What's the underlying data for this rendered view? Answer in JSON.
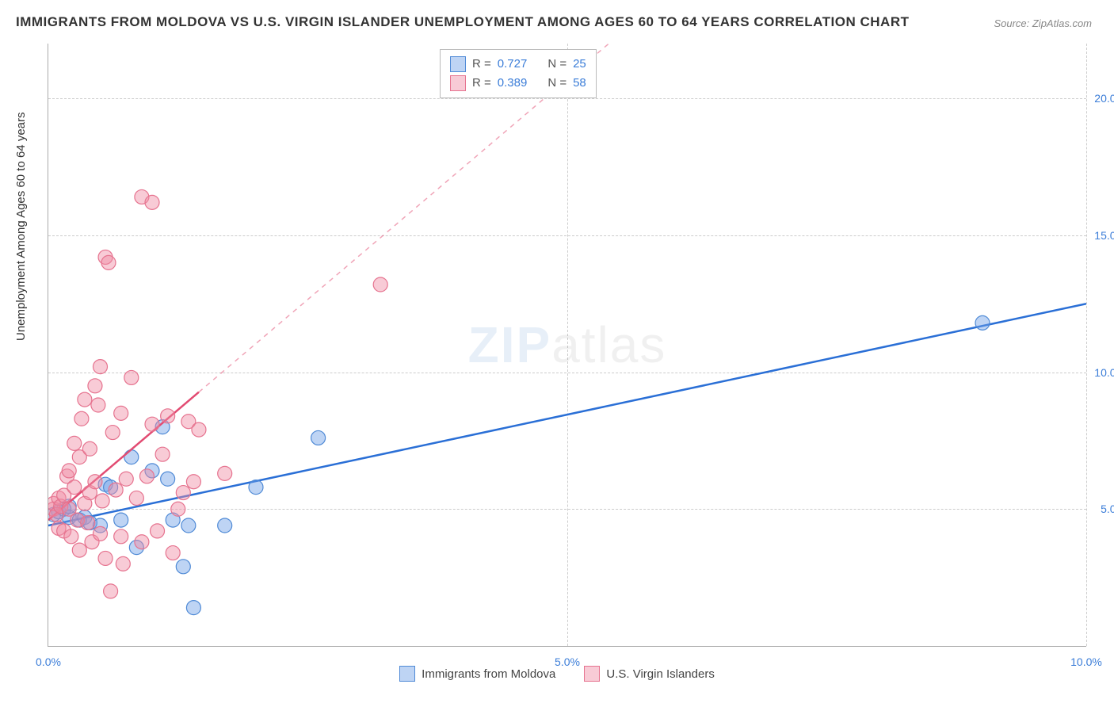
{
  "title": "IMMIGRANTS FROM MOLDOVA VS U.S. VIRGIN ISLANDER UNEMPLOYMENT AMONG AGES 60 TO 64 YEARS CORRELATION CHART",
  "source": "Source: ZipAtlas.com",
  "ylabel": "Unemployment Among Ages 60 to 64 years",
  "watermark_bold": "ZIP",
  "watermark_light": "atlas",
  "chart": {
    "type": "scatter",
    "background_color": "#ffffff",
    "grid_color": "#cccccc",
    "axis_color": "#aaaaaa",
    "tick_label_color": "#3b7dd8",
    "tick_fontsize": 14,
    "label_fontsize": 15,
    "xlim": [
      0,
      10
    ],
    "ylim": [
      0,
      22
    ],
    "xticks": [
      0,
      5,
      10
    ],
    "xtick_labels": [
      "0.0%",
      "5.0%",
      "10.0%"
    ],
    "yticks": [
      5,
      10,
      15,
      20
    ],
    "ytick_labels": [
      "5.0%",
      "10.0%",
      "15.0%",
      "20.0%"
    ],
    "series": [
      {
        "name": "Immigrants from Moldova",
        "marker_fill": "rgba(110,160,230,0.45)",
        "marker_stroke": "#4f8ad6",
        "line_color": "#2a6fd6",
        "line_width": 2.5,
        "marker_radius": 9,
        "R": "0.727",
        "N": "25",
        "trend": {
          "x1": 0,
          "y1": 4.4,
          "x2": 10,
          "y2": 12.5,
          "dash_after_x": null
        },
        "points": [
          [
            0.05,
            4.8
          ],
          [
            0.1,
            4.9
          ],
          [
            0.15,
            5.0
          ],
          [
            0.2,
            4.7
          ],
          [
            0.2,
            5.1
          ],
          [
            0.3,
            4.6
          ],
          [
            0.35,
            4.7
          ],
          [
            0.4,
            4.5
          ],
          [
            0.5,
            4.4
          ],
          [
            0.55,
            5.9
          ],
          [
            0.6,
            5.8
          ],
          [
            0.7,
            4.6
          ],
          [
            0.8,
            6.9
          ],
          [
            0.85,
            3.6
          ],
          [
            1.0,
            6.4
          ],
          [
            1.1,
            8.0
          ],
          [
            1.2,
            4.6
          ],
          [
            1.35,
            4.4
          ],
          [
            1.4,
            1.4
          ],
          [
            1.3,
            2.9
          ],
          [
            1.15,
            6.1
          ],
          [
            1.7,
            4.4
          ],
          [
            2.0,
            5.8
          ],
          [
            2.6,
            7.6
          ],
          [
            9.0,
            11.8
          ]
        ]
      },
      {
        "name": "U.S. Virgin Islanders",
        "marker_fill": "rgba(240,140,165,0.45)",
        "marker_stroke": "#e6738f",
        "line_color": "#e24b72",
        "line_width": 2.5,
        "marker_radius": 9,
        "R": "0.389",
        "N": "58",
        "trend": {
          "x1": 0,
          "y1": 4.6,
          "x2": 5.4,
          "y2": 22,
          "dash_after_x": 1.45
        },
        "points": [
          [
            0.05,
            5.0
          ],
          [
            0.05,
            5.2
          ],
          [
            0.08,
            4.8
          ],
          [
            0.1,
            5.4
          ],
          [
            0.1,
            4.3
          ],
          [
            0.12,
            5.1
          ],
          [
            0.15,
            5.5
          ],
          [
            0.15,
            4.2
          ],
          [
            0.18,
            6.2
          ],
          [
            0.2,
            5.0
          ],
          [
            0.2,
            6.4
          ],
          [
            0.22,
            4.0
          ],
          [
            0.25,
            5.8
          ],
          [
            0.25,
            7.4
          ],
          [
            0.28,
            4.6
          ],
          [
            0.3,
            6.9
          ],
          [
            0.3,
            3.5
          ],
          [
            0.32,
            8.3
          ],
          [
            0.35,
            5.2
          ],
          [
            0.35,
            9.0
          ],
          [
            0.38,
            4.5
          ],
          [
            0.4,
            7.2
          ],
          [
            0.4,
            5.6
          ],
          [
            0.42,
            3.8
          ],
          [
            0.45,
            6.0
          ],
          [
            0.45,
            9.5
          ],
          [
            0.48,
            8.8
          ],
          [
            0.5,
            4.1
          ],
          [
            0.5,
            10.2
          ],
          [
            0.52,
            5.3
          ],
          [
            0.55,
            14.2
          ],
          [
            0.55,
            3.2
          ],
          [
            0.58,
            14.0
          ],
          [
            0.6,
            2.0
          ],
          [
            0.62,
            7.8
          ],
          [
            0.65,
            5.7
          ],
          [
            0.7,
            8.5
          ],
          [
            0.7,
            4.0
          ],
          [
            0.72,
            3.0
          ],
          [
            0.75,
            6.1
          ],
          [
            0.8,
            9.8
          ],
          [
            0.85,
            5.4
          ],
          [
            0.9,
            16.4
          ],
          [
            0.9,
            3.8
          ],
          [
            0.95,
            6.2
          ],
          [
            1.0,
            8.1
          ],
          [
            1.0,
            16.2
          ],
          [
            1.05,
            4.2
          ],
          [
            1.1,
            7.0
          ],
          [
            1.15,
            8.4
          ],
          [
            1.2,
            3.4
          ],
          [
            1.25,
            5.0
          ],
          [
            1.3,
            5.6
          ],
          [
            1.35,
            8.2
          ],
          [
            1.4,
            6.0
          ],
          [
            1.45,
            7.9
          ],
          [
            1.7,
            6.3
          ],
          [
            3.2,
            13.2
          ]
        ]
      }
    ]
  },
  "legend_bottom": {
    "items": [
      {
        "label": "Immigrants from Moldova",
        "fill": "rgba(110,160,230,0.45)",
        "stroke": "#4f8ad6"
      },
      {
        "label": "U.S. Virgin Islanders",
        "fill": "rgba(240,140,165,0.45)",
        "stroke": "#e6738f"
      }
    ]
  },
  "legend_top": {
    "rows": [
      {
        "fill": "rgba(110,160,230,0.45)",
        "stroke": "#4f8ad6",
        "R": "0.727",
        "N": "25"
      },
      {
        "fill": "rgba(240,140,165,0.45)",
        "stroke": "#e6738f",
        "R": "0.389",
        "N": "58"
      }
    ]
  }
}
